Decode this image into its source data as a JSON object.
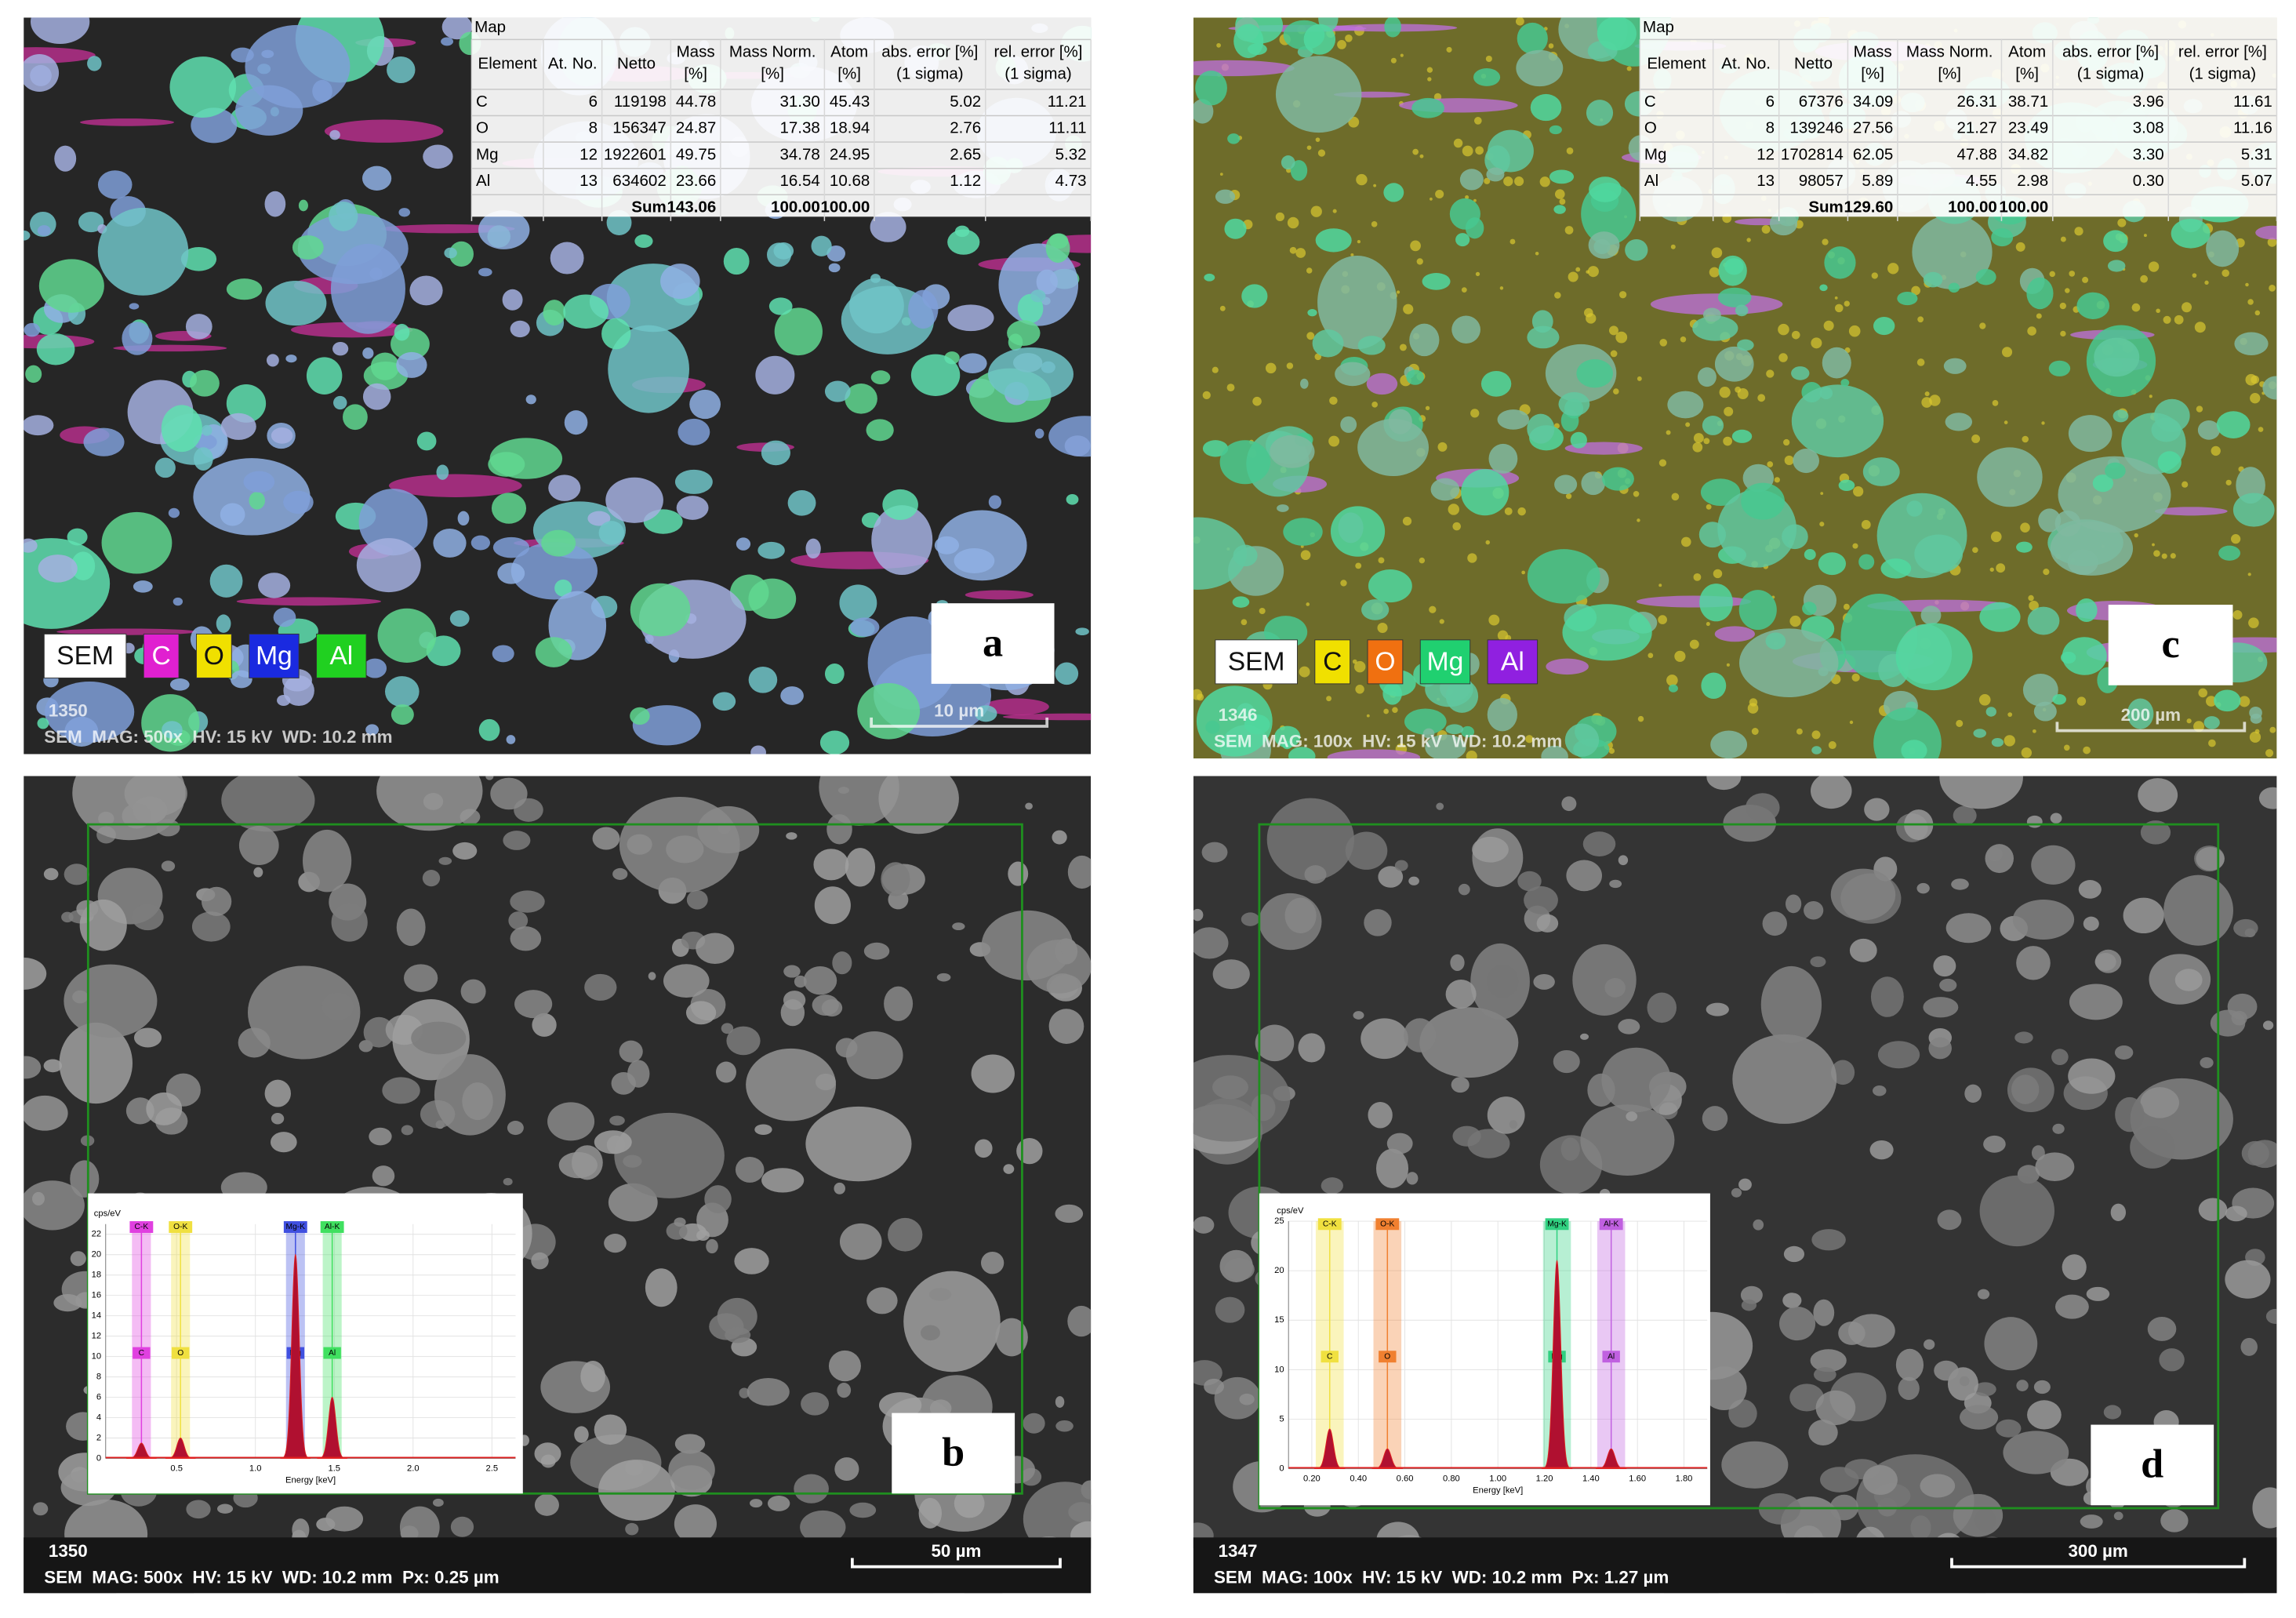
{
  "panels": [
    {
      "type": "map",
      "label": "a",
      "table": {
        "title": "Map",
        "header": [
          [
            "Element"
          ],
          [
            "At. No."
          ],
          [
            "Netto"
          ],
          [
            "Mass",
            "[%]"
          ],
          [
            "Mass Norm.",
            "[%]"
          ],
          [
            "Atom",
            "[%]"
          ],
          [
            "abs. error [%]",
            "(1 sigma)"
          ],
          [
            "rel. error [%]",
            "(1 sigma)"
          ]
        ],
        "rows": [
          [
            "C",
            "6",
            "119198",
            "44.78",
            "31.30",
            "45.43",
            "5.02",
            "11.21"
          ],
          [
            "O",
            "8",
            "156347",
            "24.87",
            "17.38",
            "18.94",
            "2.76",
            "11.11"
          ],
          [
            "Mg",
            "12",
            "1922601",
            "49.75",
            "34.78",
            "24.95",
            "2.65",
            "5.32"
          ],
          [
            "Al",
            "13",
            "634602",
            "23.66",
            "16.54",
            "10.68",
            "1.12",
            "4.73"
          ]
        ],
        "sum": [
          "Sum",
          "143.06",
          "100.00",
          "100.00"
        ]
      },
      "legend": [
        {
          "text": "SEM",
          "color": "#ffffff"
        },
        {
          "text": "C",
          "color": "#e020d0"
        },
        {
          "text": "O",
          "color": "#f0e000"
        },
        {
          "text": "Mg",
          "color": "#1a2ae0"
        },
        {
          "text": "Al",
          "color": "#20d020"
        }
      ],
      "info": {
        "id": "1350",
        "line": "SEM  MAG: 500x  HV: 15 kV  WD: 10.2 mm",
        "scale": "10 µm"
      }
    },
    {
      "type": "spectrum",
      "label": "b",
      "spectrum": {
        "y_label": "cps/eV",
        "x_label": "Energy [keV]",
        "xlim": [
          0.05,
          2.65
        ],
        "ylim": [
          0,
          23
        ],
        "xticks": [
          0.5,
          {
            "value": 1,
            "label": "1.0"
          },
          1.5,
          {
            "value": 2,
            "label": "2.0"
          },
          2.5
        ],
        "yticks": [
          0,
          2,
          4,
          6,
          8,
          10,
          12,
          14,
          16,
          18,
          20,
          22
        ],
        "peaks": [
          {
            "name": "C-K",
            "marker": "C",
            "energy": 0.277,
            "height": 1.5,
            "color": "#e040e0"
          },
          {
            "name": "O-K",
            "marker": "O",
            "energy": 0.525,
            "height": 2,
            "color": "#f0e040"
          },
          {
            "name": "Mg-K",
            "marker": "Mg",
            "energy": 1.254,
            "height": 20,
            "color": "#4050e0"
          },
          {
            "name": "Al-K",
            "marker": "Al",
            "energy": 1.487,
            "height": 6,
            "color": "#40e060"
          }
        ]
      },
      "info": {
        "id": "1350",
        "line": "SEM  MAG: 500x  HV: 15 kV  WD: 10.2 mm  Px: 0.25 µm",
        "scale": "50 µm"
      }
    },
    {
      "type": "map",
      "label": "c",
      "table": {
        "title": "Map",
        "header": [
          [
            "Element"
          ],
          [
            "At. No."
          ],
          [
            "Netto"
          ],
          [
            "Mass",
            "[%]"
          ],
          [
            "Mass Norm.",
            "[%]"
          ],
          [
            "Atom",
            "[%]"
          ],
          [
            "abs. error [%]",
            "(1 sigma)"
          ],
          [
            "rel. error [%]",
            "(1 sigma)"
          ]
        ],
        "rows": [
          [
            "C",
            "6",
            "67376",
            "34.09",
            "26.31",
            "38.71",
            "3.96",
            "11.61"
          ],
          [
            "O",
            "8",
            "139246",
            "27.56",
            "21.27",
            "23.49",
            "3.08",
            "11.16"
          ],
          [
            "Mg",
            "12",
            "1702814",
            "62.05",
            "47.88",
            "34.82",
            "3.30",
            "5.31"
          ],
          [
            "Al",
            "13",
            "98057",
            "5.89",
            "4.55",
            "2.98",
            "0.30",
            "5.07"
          ]
        ],
        "sum": [
          "Sum",
          "129.60",
          "100.00",
          "100.00"
        ]
      },
      "legend": [
        {
          "text": "SEM",
          "color": "#ffffff"
        },
        {
          "text": "C",
          "color": "#f0e000"
        },
        {
          "text": "O",
          "color": "#f07010"
        },
        {
          "text": "Mg",
          "color": "#20d070"
        },
        {
          "text": "Al",
          "color": "#9020e0"
        }
      ],
      "info": {
        "id": "1346",
        "line": "SEM  MAG: 100x  HV: 15 kV  WD: 10.2 mm",
        "scale": "200 µm"
      }
    },
    {
      "type": "spectrum",
      "label": "d",
      "spectrum": {
        "y_label": "cps/eV",
        "x_label": "Energy [keV]",
        "xlim": [
          0.1,
          1.9
        ],
        "ylim": [
          0,
          25
        ],
        "xticks": [
          {
            "value": 0.2,
            "label": "0.20"
          },
          {
            "value": 0.4,
            "label": "0.40"
          },
          {
            "value": 0.6,
            "label": "0.60"
          },
          {
            "value": 0.8,
            "label": "0.80"
          },
          {
            "value": 1,
            "label": "1.00"
          },
          {
            "value": 1.2,
            "label": "1.20"
          },
          {
            "value": 1.4,
            "label": "1.40"
          },
          {
            "value": 1.6,
            "label": "1.60"
          },
          {
            "value": 1.8,
            "label": "1.80"
          }
        ],
        "yticks": [
          0,
          5,
          10,
          15,
          20,
          25
        ],
        "peaks": [
          {
            "name": "C-K",
            "marker": "C",
            "energy": 0.277,
            "height": 4,
            "color": "#f0e040"
          },
          {
            "name": "O-K",
            "marker": "O",
            "energy": 0.525,
            "height": 2,
            "color": "#f08030"
          },
          {
            "name": "Mg-K",
            "marker": "Mg",
            "energy": 1.254,
            "height": 21,
            "color": "#30d080"
          },
          {
            "name": "Al-K",
            "marker": "Al",
            "energy": 1.487,
            "height": 2,
            "color": "#c060e0"
          }
        ]
      },
      "info": {
        "id": "1347",
        "line": "SEM  MAG: 100x  HV: 15 kV  WD: 10.2 mm  Px: 1.27 µm",
        "scale": "300 µm"
      }
    }
  ]
}
